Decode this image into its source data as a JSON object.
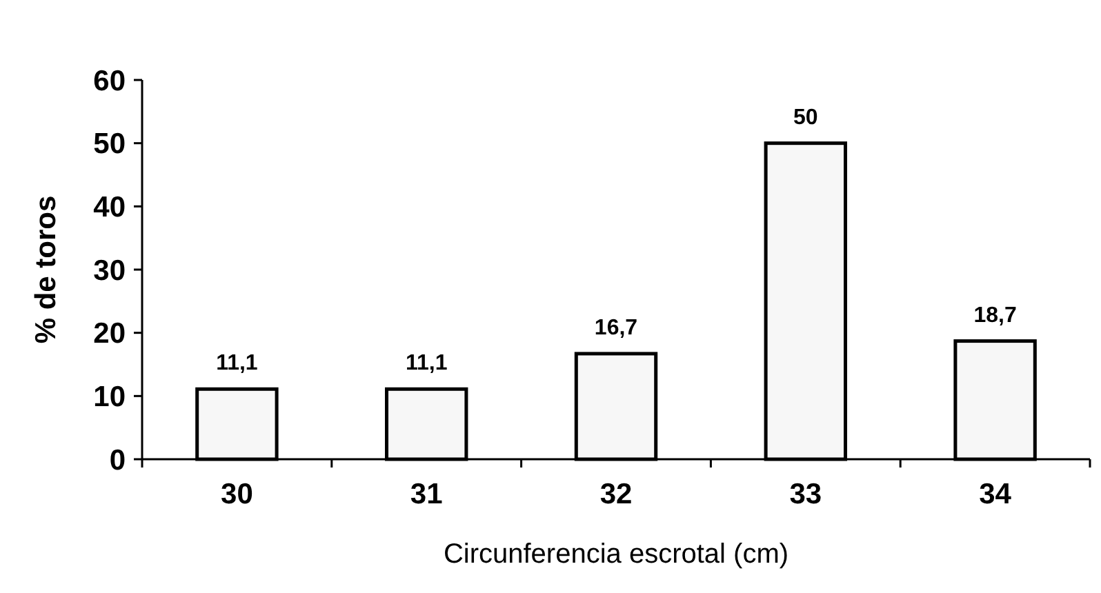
{
  "chart_data": {
    "type": "bar",
    "xlabel": "Circunferencia escrotal (cm)",
    "ylabel": "% de toros",
    "categories": [
      "30",
      "31",
      "32",
      "33",
      "34"
    ],
    "values": [
      11.1,
      11.1,
      16.7,
      50,
      18.7
    ],
    "value_labels": [
      "11,1",
      "11,1",
      "16,7",
      "50",
      "18,7"
    ],
    "color": "#f7f7f7",
    "ylim": [
      0,
      60
    ],
    "yticks": [
      0,
      10,
      20,
      30,
      40,
      50,
      60
    ],
    "grid": false
  }
}
